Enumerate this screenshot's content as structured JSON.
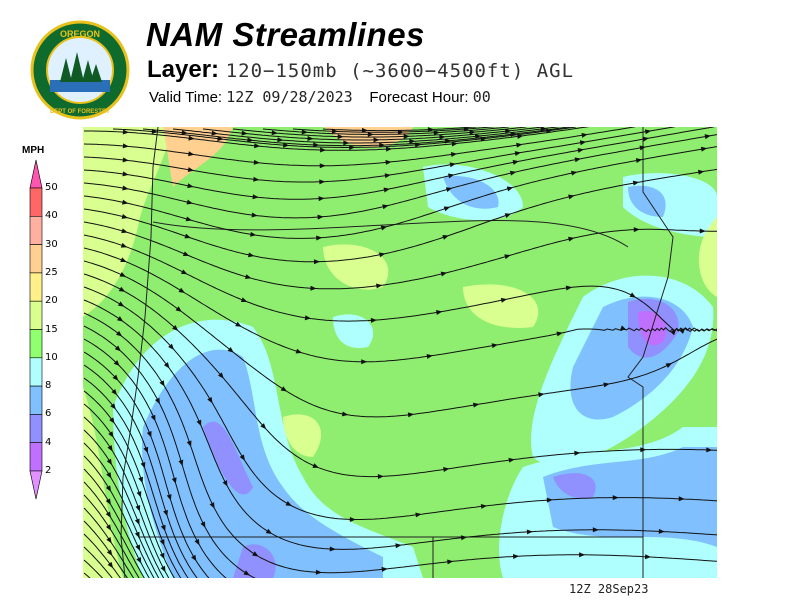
{
  "header": {
    "title": "NAM Streamlines",
    "layer_label": "Layer:",
    "layer_value": "120−150mb (~3600−4500ft) AGL",
    "valid_label": "Valid Time:",
    "valid_value": "12Z 09/28/2023",
    "forecast_label": "Forecast Hour:",
    "forecast_value": "00"
  },
  "logo": {
    "text_top": "OREGON",
    "text_ring": "DEPARTMENT OF FORESTRY"
  },
  "legend": {
    "unit": "MPH",
    "labels": [
      "50",
      "40",
      "30",
      "25",
      "20",
      "15",
      "10",
      "8",
      "6",
      "4",
      "2"
    ],
    "colors": [
      "#ff6666",
      "#ffb0a0",
      "#ffd090",
      "#fff08a",
      "#d8ff90",
      "#90ff70",
      "#b0ffff",
      "#80c0ff",
      "#9090ff",
      "#c070ff"
    ],
    "top_arrow_color": "#ff55b0",
    "bottom_arrow_color": "#e090ff"
  },
  "map": {
    "stamp": "12Z 28Sep23",
    "base_color": "#8fee70"
  }
}
